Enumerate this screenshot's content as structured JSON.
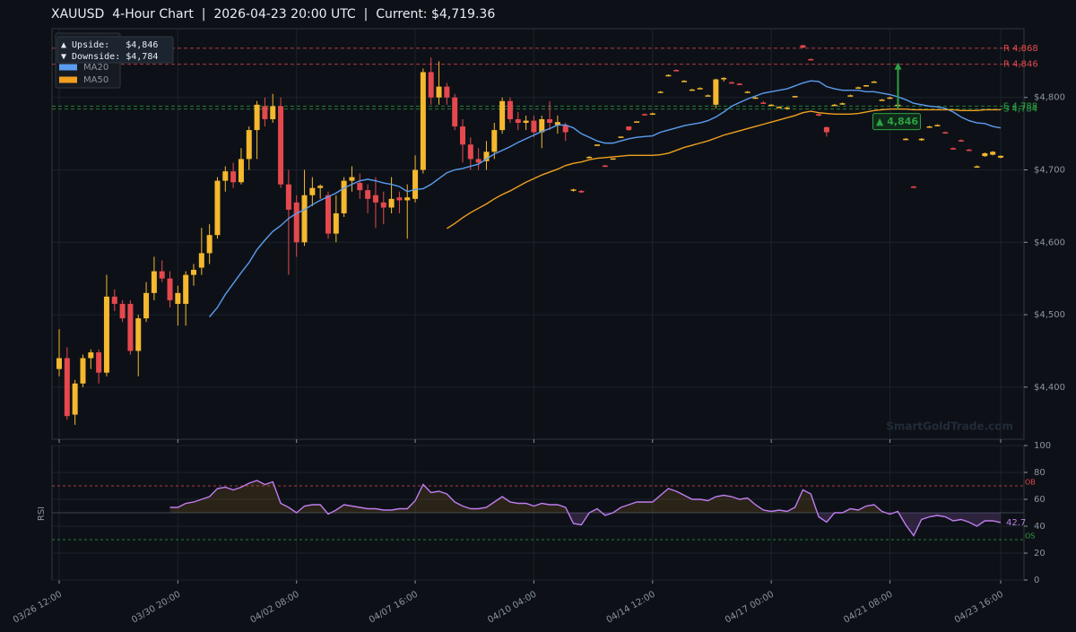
{
  "chart_data": [
    {
      "type": "candlestick",
      "title": "XAUUSD  4-Hour Chart  |  2026-04-23 20:00 UTC  |  Current: $4,719.36",
      "categories": [
        "03/26 12:00",
        null,
        null,
        null,
        null,
        null,
        null,
        null,
        null,
        null,
        null,
        null,
        null,
        null,
        null,
        "03/30 20:00",
        null,
        null,
        null,
        null,
        null,
        null,
        null,
        null,
        null,
        null,
        null,
        null,
        null,
        null,
        "04/02 08:00",
        null,
        null,
        null,
        null,
        null,
        null,
        null,
        null,
        null,
        null,
        null,
        null,
        null,
        null,
        "04/07 16:00",
        null,
        null,
        null,
        null,
        null,
        null,
        null,
        null,
        null,
        null,
        null,
        null,
        null,
        null,
        "04/10 04:00",
        null,
        null,
        null,
        null,
        null,
        null,
        null,
        null,
        null,
        null,
        null,
        null,
        null,
        null,
        "04/14 12:00",
        null,
        null,
        null,
        null,
        null,
        null,
        null,
        null,
        null,
        null,
        null,
        null,
        null,
        null,
        "04/17 00:00",
        null,
        null,
        null,
        null,
        null,
        null,
        null,
        null,
        null,
        null,
        null,
        null,
        null,
        null,
        "04/21 08:00",
        null,
        null,
        null,
        null,
        null,
        null,
        null,
        null,
        null,
        null,
        null,
        null,
        null,
        "04/23 16:00"
      ],
      "ohlc": [
        [
          4425,
          4480,
          4415,
          4440
        ],
        [
          4440,
          4455,
          4355,
          4360
        ],
        [
          4362,
          4410,
          4348,
          4405
        ],
        [
          4405,
          4445,
          4400,
          4440
        ],
        [
          4440,
          4452,
          4425,
          4448
        ],
        [
          4448,
          4452,
          4405,
          4420
        ],
        [
          4420,
          4555,
          4415,
          4525
        ],
        [
          4525,
          4535,
          4505,
          4515
        ],
        [
          4515,
          4520,
          4490,
          4495
        ],
        [
          4515,
          4520,
          4445,
          4450
        ],
        [
          4450,
          4500,
          4415,
          4495
        ],
        [
          4495,
          4545,
          4490,
          4530
        ],
        [
          4530,
          4580,
          4520,
          4560
        ],
        [
          4560,
          4575,
          4545,
          4550
        ],
        [
          4550,
          4560,
          4510,
          4520
        ],
        [
          4515,
          4540,
          4485,
          4530
        ],
        [
          4515,
          4560,
          4485,
          4555
        ],
        [
          4555,
          4570,
          4540,
          4562
        ],
        [
          4565,
          4620,
          4555,
          4585
        ],
        [
          4585,
          4625,
          4570,
          4610
        ],
        [
          4610,
          4690,
          4605,
          4685
        ],
        [
          4685,
          4705,
          4670,
          4698
        ],
        [
          4698,
          4710,
          4675,
          4683
        ],
        [
          4683,
          4730,
          4680,
          4715
        ],
        [
          4715,
          4760,
          4700,
          4755
        ],
        [
          4755,
          4795,
          4715,
          4790
        ],
        [
          4788,
          4800,
          4760,
          4770
        ],
        [
          4770,
          4805,
          4765,
          4788
        ],
        [
          4788,
          4800,
          4675,
          4680
        ],
        [
          4680,
          4700,
          4555,
          4645
        ],
        [
          4655,
          4665,
          4580,
          4600
        ],
        [
          4600,
          4700,
          4595,
          4665
        ],
        [
          4665,
          4690,
          4650,
          4675
        ],
        [
          4675,
          4680,
          4660,
          4678
        ],
        [
          4665,
          4670,
          4605,
          4612
        ],
        [
          4612,
          4665,
          4600,
          4640
        ],
        [
          4640,
          4690,
          4635,
          4685
        ],
        [
          4685,
          4705,
          4670,
          4690
        ],
        [
          4682,
          4695,
          4660,
          4672
        ],
        [
          4672,
          4680,
          4640,
          4660
        ],
        [
          4665,
          4690,
          4620,
          4655
        ],
        [
          4655,
          4670,
          4625,
          4648
        ],
        [
          4648,
          4690,
          4640,
          4660
        ],
        [
          4662,
          4670,
          4640,
          4658
        ],
        [
          4658,
          4680,
          4605,
          4662
        ],
        [
          4660,
          4720,
          4655,
          4700
        ],
        [
          4700,
          4840,
          4695,
          4835
        ],
        [
          4835,
          4855,
          4790,
          4800
        ],
        [
          4800,
          4850,
          4790,
          4815
        ],
        [
          4815,
          4820,
          4790,
          4800
        ],
        [
          4800,
          4805,
          4755,
          4760
        ],
        [
          4760,
          4770,
          4710,
          4735
        ],
        [
          4735,
          4745,
          4700,
          4715
        ],
        [
          4715,
          4730,
          4700,
          4710
        ],
        [
          4712,
          4740,
          4700,
          4725
        ],
        [
          4725,
          4765,
          4715,
          4755
        ],
        [
          4755,
          4800,
          4750,
          4795
        ],
        [
          4795,
          4800,
          4765,
          4770
        ],
        [
          4770,
          4780,
          4755,
          4765
        ],
        [
          4765,
          4775,
          4755,
          4768
        ],
        [
          4768,
          4775,
          4745,
          4752
        ],
        [
          4752,
          4775,
          4730,
          4770
        ],
        [
          4770,
          4795,
          4755,
          4765
        ],
        [
          4762,
          4775,
          4750,
          4766
        ],
        [
          4762,
          4765,
          4740,
          4752
        ],
        [
          4672,
          4674,
          4670,
          4673
        ],
        [
          4671,
          4672,
          4668,
          4669
        ],
        [
          4718,
          4719,
          4717,
          4718
        ],
        [
          4734,
          4735,
          4733,
          4735
        ],
        [
          4706,
          4707,
          4704,
          4705
        ],
        [
          4715,
          4716,
          4714,
          4716
        ],
        [
          4745,
          4746,
          4744,
          4746
        ],
        [
          4760,
          4760,
          4754,
          4755
        ],
        [
          4766,
          4767,
          4765,
          4767
        ],
        [
          4777,
          4778,
          4775,
          4776
        ],
        [
          4777,
          4779,
          4776,
          4778
        ],
        [
          4808,
          4809,
          4807,
          4808
        ],
        [
          4830,
          4832,
          4829,
          4831
        ],
        [
          4838,
          4839,
          4836,
          4837
        ],
        [
          4823,
          4824,
          4822,
          4823
        ],
        [
          4811,
          4812,
          4810,
          4811
        ],
        [
          4813,
          4814,
          4812,
          4813
        ],
        [
          4803,
          4804,
          4802,
          4803
        ],
        [
          4790,
          4826,
          4785,
          4825
        ],
        [
          4825,
          4828,
          4822,
          4827
        ],
        [
          4821,
          4822,
          4819,
          4820
        ],
        [
          4819,
          4820,
          4817,
          4818
        ],
        [
          4808,
          4809,
          4807,
          4808
        ],
        [
          4800,
          4801,
          4799,
          4800
        ],
        [
          4793,
          4795,
          4791,
          4792
        ],
        [
          4790,
          4791,
          4789,
          4790
        ],
        [
          4787,
          4788,
          4786,
          4787
        ],
        [
          4785,
          4787,
          4783,
          4786
        ],
        [
          4801,
          4802,
          4800,
          4802
        ],
        [
          4872,
          4873,
          4868,
          4869
        ],
        [
          4853,
          4854,
          4852,
          4852
        ],
        [
          4777,
          4778,
          4774,
          4775
        ],
        [
          4759,
          4760,
          4746,
          4752
        ],
        [
          4790,
          4791,
          4789,
          4790
        ],
        [
          4792,
          4793,
          4790,
          4792
        ],
        [
          4803,
          4804,
          4802,
          4803
        ],
        [
          4814,
          4815,
          4813,
          4814
        ],
        [
          4816,
          4817,
          4815,
          4817
        ],
        [
          4822,
          4823,
          4821,
          4822
        ],
        [
          4797,
          4798,
          4796,
          4797
        ],
        [
          4800,
          4801,
          4799,
          4800
        ],
        [
          4790,
          4791,
          4789,
          4790
        ],
        [
          4742,
          4744,
          4741,
          4743
        ],
        [
          4677,
          4678,
          4675,
          4676
        ],
        [
          4741,
          4744,
          4740,
          4743
        ],
        [
          4760,
          4761,
          4759,
          4760
        ],
        [
          4762,
          4763,
          4761,
          4762
        ],
        [
          4752,
          4753,
          4750,
          4751
        ],
        [
          4730,
          4731,
          4728,
          4729
        ],
        [
          4741,
          4742,
          4739,
          4740
        ],
        [
          4728,
          4729,
          4726,
          4727
        ],
        [
          4704,
          4706,
          4703,
          4705
        ],
        [
          4719,
          4724,
          4718,
          4723
        ],
        [
          4721,
          4726,
          4720,
          4725
        ],
        [
          4717,
          4720,
          4716,
          4719.36
        ]
      ],
      "up_color": "#f5b82e",
      "down_color": "#e5484d",
      "series": [
        {
          "name": "MA20",
          "color": "#5b9cf0",
          "values": [
            null,
            null,
            null,
            null,
            null,
            null,
            null,
            null,
            null,
            null,
            null,
            null,
            null,
            null,
            null,
            null,
            null,
            null,
            null,
            4497,
            4510,
            4528,
            4543,
            4558,
            4572,
            4590,
            4603,
            4615,
            4623,
            4633,
            4640,
            4645,
            4652,
            4658,
            4663,
            4668,
            4675,
            4680,
            4685,
            4687,
            4685,
            4682,
            4680,
            4677,
            4670,
            4673,
            4674,
            4680,
            4688,
            4696,
            4700,
            4702,
            4705,
            4708,
            4715,
            4722,
            4727,
            4732,
            4738,
            4743,
            4748,
            4753,
            4757,
            4762,
            4762,
            4758,
            4750,
            4745,
            4740,
            4737,
            4737,
            4740,
            4743,
            4745,
            4746,
            4747,
            4752,
            4755,
            4758,
            4761,
            4763,
            4765,
            4768,
            4773,
            4780,
            4788,
            4793,
            4798,
            4802,
            4806,
            4808,
            4810,
            4812,
            4816,
            4820,
            4823,
            4822,
            4815,
            4812,
            4810,
            4810,
            4810,
            4808,
            4808,
            4806,
            4804,
            4801,
            4797,
            4792,
            4790,
            4788,
            4787,
            4785,
            4780,
            4773,
            4768,
            4765,
            4764,
            4760,
            4758
          ]
        },
        {
          "name": "MA50",
          "color": "#f0a020",
          "values": [
            null,
            null,
            null,
            null,
            null,
            null,
            null,
            null,
            null,
            null,
            null,
            null,
            null,
            null,
            null,
            null,
            null,
            null,
            null,
            null,
            null,
            null,
            null,
            null,
            null,
            null,
            null,
            null,
            null,
            null,
            null,
            null,
            null,
            null,
            null,
            null,
            null,
            null,
            null,
            null,
            null,
            null,
            null,
            null,
            null,
            null,
            null,
            null,
            null,
            4619,
            4626,
            4634,
            4641,
            4647,
            4653,
            4660,
            4666,
            4671,
            4677,
            4683,
            4688,
            4693,
            4697,
            4701,
            4706,
            4709,
            4711,
            4714,
            4716,
            4717,
            4718,
            4719,
            4720,
            4720,
            4720,
            4720,
            4721,
            4723,
            4727,
            4731,
            4734,
            4737,
            4740,
            4744,
            4748,
            4751,
            4754,
            4757,
            4760,
            4763,
            4766,
            4769,
            4772,
            4775,
            4779,
            4781,
            4779,
            4778,
            4777,
            4777,
            4777,
            4778,
            4780,
            4782,
            4783,
            4784,
            4784,
            4784,
            4783,
            4783,
            4783,
            4783,
            4783,
            4783,
            4782,
            4782,
            4782,
            4783,
            4783,
            4783
          ]
        }
      ],
      "ylim": [
        4328,
        4895
      ],
      "yticks": [
        {
          "value": 4400,
          "label": "$4,400"
        },
        {
          "value": 4500,
          "label": "$4,500"
        },
        {
          "value": 4600,
          "label": "$4,600"
        },
        {
          "value": 4700,
          "label": "$4,700"
        },
        {
          "value": 4800,
          "label": "$4,800"
        }
      ],
      "grid": true,
      "levels": [
        {
          "value": 4868,
          "label": "R 4,868",
          "color": "#e5484d"
        },
        {
          "value": 4846,
          "label": "R 4,846",
          "color": "#e5484d"
        },
        {
          "value": 4788,
          "label": "S 4,788",
          "color": "#2ea043"
        },
        {
          "value": 4784,
          "label": "S 4,784",
          "color": "#2ea043"
        }
      ],
      "annotation": {
        "label": "▲ 4,846",
        "from": 4784,
        "value": 4846,
        "color": "#2ea043"
      },
      "legend_position": "upper left",
      "legend_texts": [
        "▲ Upside:   $4,846",
        "▼ Downside: $4,784"
      ],
      "watermark": "SmartGoldTrade.com"
    },
    {
      "type": "rsi",
      "ylabel": "RSI",
      "color": "#c07cf0",
      "values": [
        null,
        null,
        null,
        null,
        null,
        null,
        null,
        null,
        null,
        null,
        null,
        null,
        null,
        null,
        54,
        54,
        57,
        58,
        60,
        62,
        68,
        69,
        67,
        69,
        72,
        74,
        71,
        73,
        57,
        54,
        50,
        55,
        56,
        56,
        49,
        52,
        56,
        55,
        54,
        53,
        53,
        52,
        52,
        53,
        53,
        59,
        71,
        65,
        66,
        64,
        58,
        55,
        53,
        53,
        54,
        58,
        62,
        58,
        57,
        57,
        55,
        57,
        56,
        56,
        54,
        42,
        41,
        50,
        53,
        48,
        50,
        54,
        56,
        58,
        58,
        58,
        63,
        68,
        66,
        63,
        60,
        60,
        59,
        62,
        63,
        62,
        60,
        61,
        56,
        52,
        51,
        52,
        51,
        54,
        67,
        64,
        47,
        43,
        50,
        50,
        53,
        52,
        55,
        56,
        51,
        49,
        51,
        41,
        33,
        45,
        47,
        48,
        47,
        44,
        45,
        43,
        40,
        44,
        44,
        42.7
      ],
      "ylim": [
        0,
        100
      ],
      "yticks": [
        0,
        20,
        40,
        60,
        80,
        100
      ],
      "grid": true,
      "midline": 50,
      "levels": [
        {
          "value": 70,
          "label": "OB",
          "color": "#e5484d"
        },
        {
          "value": 30,
          "label": "OS",
          "color": "#2ea043"
        }
      ]
    }
  ]
}
